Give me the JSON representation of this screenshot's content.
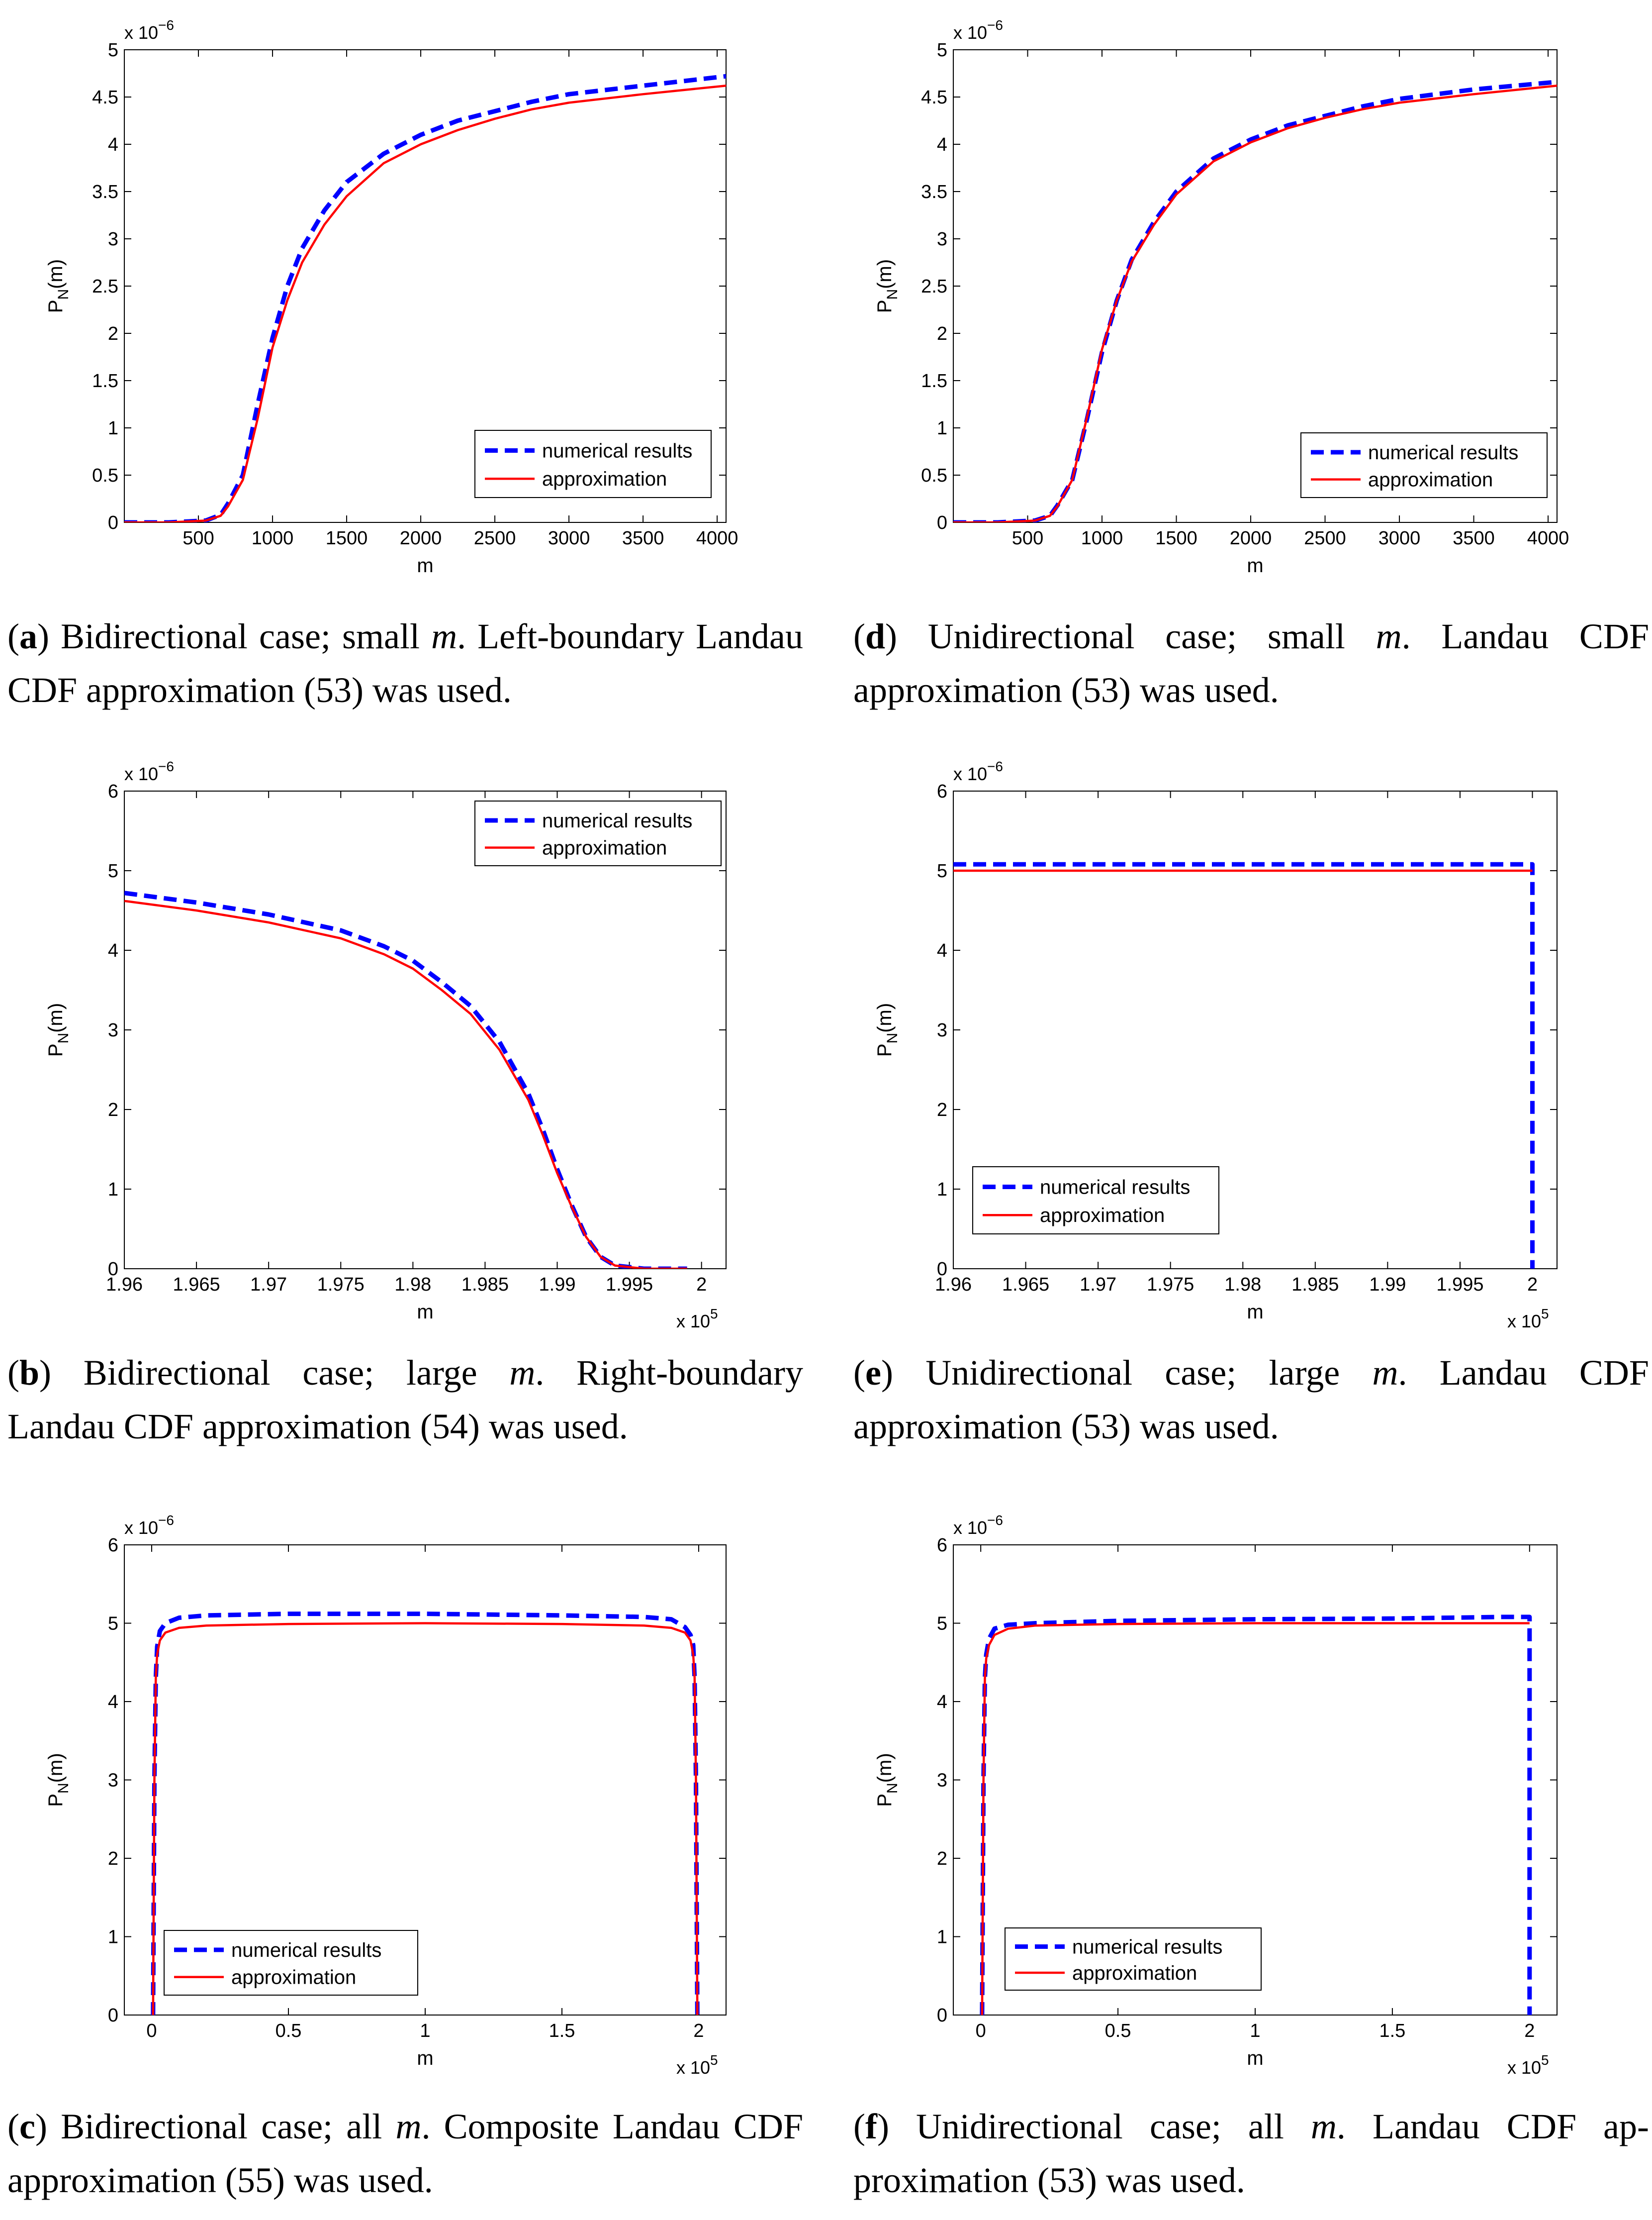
{
  "colors": {
    "numerical": "#0000ff",
    "approximation": "#ff0000",
    "axis": "#000000"
  },
  "chart_data": [
    {
      "id": "a",
      "type": "line",
      "xlim": [
        0,
        4060
      ],
      "ylim": [
        0,
        5
      ],
      "y_exponent": "x 10",
      "xticks": [
        500,
        1000,
        1500,
        2000,
        2500,
        3000,
        3500,
        4000
      ],
      "xtick_labels": [
        "500",
        "1000",
        "1500",
        "2000",
        "2500",
        "3000",
        "3500",
        "4000"
      ],
      "yticks": [
        0,
        0.5,
        1,
        1.5,
        2,
        2.5,
        3,
        3.5,
        4,
        4.5,
        5
      ],
      "ytick_labels": [
        "0",
        "0.5",
        "1",
        "1.5",
        "2",
        "2.5",
        "3",
        "3.5",
        "4",
        "4.5",
        "5"
      ],
      "xlabel": "m",
      "ylabel": "P_N(m)",
      "exp_base": "x 10",
      "exp_power": "−6",
      "legend": {
        "placement": "bottom-right",
        "entries": [
          "numerical results",
          "approximation"
        ]
      },
      "series": [
        {
          "name": "numerical results",
          "x": [
            0,
            300,
            550,
            650,
            700,
            800,
            900,
            1000,
            1100,
            1200,
            1350,
            1500,
            1750,
            2000,
            2250,
            2500,
            2750,
            3000,
            3500,
            4060
          ],
          "y": [
            0,
            0,
            0.02,
            0.08,
            0.2,
            0.5,
            1.25,
            1.95,
            2.5,
            2.9,
            3.3,
            3.6,
            3.9,
            4.1,
            4.25,
            4.35,
            4.45,
            4.53,
            4.62,
            4.72
          ]
        },
        {
          "name": "approximation",
          "x": [
            0,
            300,
            550,
            650,
            700,
            800,
            900,
            1000,
            1100,
            1200,
            1350,
            1500,
            1750,
            2000,
            2250,
            2500,
            2750,
            3000,
            3500,
            4060
          ],
          "y": [
            0,
            0,
            0.02,
            0.07,
            0.17,
            0.45,
            1.1,
            1.85,
            2.35,
            2.75,
            3.15,
            3.45,
            3.8,
            4.0,
            4.15,
            4.27,
            4.37,
            4.44,
            4.53,
            4.62
          ]
        }
      ],
      "caption": {
        "letter": "a",
        "parts": [
          "Bidirectional case; small ",
          "m",
          ". Left-boundary",
          "Landau CDF approximation (53) was used."
        ]
      }
    },
    {
      "id": "d",
      "type": "line",
      "xlim": [
        0,
        4060
      ],
      "ylim": [
        0,
        5
      ],
      "y_exponent": "x 10",
      "xticks": [
        500,
        1000,
        1500,
        2000,
        2500,
        3000,
        3500,
        4000
      ],
      "xtick_labels": [
        "500",
        "1000",
        "1500",
        "2000",
        "2500",
        "3000",
        "3500",
        "4000"
      ],
      "yticks": [
        0,
        0.5,
        1,
        1.5,
        2,
        2.5,
        3,
        3.5,
        4,
        4.5,
        5
      ],
      "ytick_labels": [
        "0",
        "0.5",
        "1",
        "1.5",
        "2",
        "2.5",
        "3",
        "3.5",
        "4",
        "4.5",
        "5"
      ],
      "xlabel": "m",
      "ylabel": "P_N(m)",
      "exp_base": "x 10",
      "exp_power": "−6",
      "legend": {
        "placement": "bottom-right",
        "entries": [
          "numerical results",
          "approximation"
        ]
      },
      "series": [
        {
          "name": "numerical results",
          "x": [
            0,
            300,
            550,
            650,
            700,
            800,
            900,
            1000,
            1100,
            1200,
            1350,
            1500,
            1750,
            2000,
            2250,
            2500,
            2750,
            3000,
            3500,
            4060
          ],
          "y": [
            0,
            0,
            0.02,
            0.07,
            0.18,
            0.45,
            1.1,
            1.8,
            2.35,
            2.78,
            3.18,
            3.5,
            3.85,
            4.05,
            4.2,
            4.3,
            4.4,
            4.48,
            4.58,
            4.66
          ]
        },
        {
          "name": "approximation",
          "x": [
            0,
            300,
            550,
            650,
            700,
            800,
            900,
            1000,
            1100,
            1200,
            1350,
            1500,
            1750,
            2000,
            2250,
            2500,
            2750,
            3000,
            3500,
            4060
          ],
          "y": [
            0,
            0,
            0.02,
            0.07,
            0.17,
            0.45,
            1.12,
            1.83,
            2.35,
            2.76,
            3.15,
            3.47,
            3.82,
            4.02,
            4.17,
            4.28,
            4.37,
            4.44,
            4.53,
            4.62
          ]
        }
      ],
      "caption": {
        "letter": "d",
        "parts": [
          "Unidirectional case; small ",
          "m",
          ". Landau CDF",
          "approximation (53) was used."
        ]
      }
    },
    {
      "id": "b",
      "type": "line",
      "xlim": [
        1.96,
        2.0017
      ],
      "ylim": [
        0,
        6
      ],
      "x_exponent": "x 10^5",
      "xticks": [
        1.96,
        1.965,
        1.97,
        1.975,
        1.98,
        1.985,
        1.99,
        1.995,
        2
      ],
      "xtick_labels": [
        "1.96",
        "1.965",
        "1.97",
        "1.975",
        "1.98",
        "1.985",
        "1.99",
        "1.995",
        "2"
      ],
      "yticks": [
        0,
        1,
        2,
        3,
        4,
        5,
        6
      ],
      "ytick_labels": [
        "0",
        "1",
        "2",
        "3",
        "4",
        "5",
        "6"
      ],
      "xlabel": "m",
      "ylabel": "P_N(m)",
      "exp_base": "x 10",
      "exp_power": "−6",
      "x_exp_base": "x 10",
      "x_exp_power": "5",
      "legend": {
        "placement": "top-right",
        "entries": [
          "numerical results",
          "approximation"
        ]
      },
      "series": [
        {
          "name": "numerical results",
          "x": [
            1.96,
            1.965,
            1.97,
            1.975,
            1.978,
            1.98,
            1.982,
            1.984,
            1.986,
            1.988,
            1.989,
            1.99,
            1.991,
            1.992,
            1.993,
            1.994,
            1.996,
            1.999
          ],
          "y": [
            4.72,
            4.6,
            4.45,
            4.25,
            4.05,
            3.87,
            3.6,
            3.3,
            2.85,
            2.2,
            1.75,
            1.25,
            0.8,
            0.4,
            0.15,
            0.04,
            0,
            0
          ]
        },
        {
          "name": "approximation",
          "x": [
            1.96,
            1.965,
            1.97,
            1.975,
            1.978,
            1.98,
            1.982,
            1.984,
            1.986,
            1.988,
            1.989,
            1.99,
            1.991,
            1.992,
            1.993,
            1.994,
            1.996,
            1.999
          ],
          "y": [
            4.62,
            4.5,
            4.35,
            4.15,
            3.95,
            3.77,
            3.5,
            3.2,
            2.75,
            2.12,
            1.68,
            1.2,
            0.78,
            0.4,
            0.15,
            0.04,
            0,
            0
          ]
        }
      ],
      "caption": {
        "letter": "b",
        "parts": [
          "Bidirectional case; large ",
          "m",
          ". Right-boundary",
          "Landau CDF approximation (54) was used."
        ]
      }
    },
    {
      "id": "e",
      "type": "line",
      "xlim": [
        1.96,
        2.0017
      ],
      "ylim": [
        0,
        6
      ],
      "x_exponent": "x 10^5",
      "xticks": [
        1.96,
        1.965,
        1.97,
        1.975,
        1.98,
        1.985,
        1.99,
        1.995,
        2
      ],
      "xtick_labels": [
        "1.96",
        "1.965",
        "1.97",
        "1.975",
        "1.98",
        "1.985",
        "1.99",
        "1.995",
        "2"
      ],
      "yticks": [
        0,
        1,
        2,
        3,
        4,
        5,
        6
      ],
      "ytick_labels": [
        "0",
        "1",
        "2",
        "3",
        "4",
        "5",
        "6"
      ],
      "xlabel": "m",
      "ylabel": "P_N(m)",
      "exp_base": "x 10",
      "exp_power": "−6",
      "x_exp_base": "x 10",
      "x_exp_power": "5",
      "legend": {
        "placement": "bottom-left",
        "entries": [
          "numerical results",
          "approximation"
        ]
      },
      "series": [
        {
          "name": "numerical results",
          "x": [
            1.96,
            2.0,
            2.0
          ],
          "y": [
            5.08,
            5.08,
            0
          ]
        },
        {
          "name": "approximation",
          "x": [
            1.96,
            2.0
          ],
          "y": [
            5.0,
            5.0
          ]
        }
      ],
      "caption": {
        "letter": "e",
        "parts": [
          "Unidirectional case; large ",
          "m",
          ". Landau CDF",
          "approximation (53) was used."
        ]
      }
    },
    {
      "id": "c",
      "type": "line",
      "xlim": [
        -0.1,
        2.1
      ],
      "ylim": [
        0,
        6
      ],
      "x_exponent": "x 10^5",
      "xticks": [
        0,
        0.5,
        1,
        1.5,
        2
      ],
      "xtick_labels": [
        "0",
        "0.5",
        "1",
        "1.5",
        "2"
      ],
      "yticks": [
        0,
        1,
        2,
        3,
        4,
        5,
        6
      ],
      "ytick_labels": [
        "0",
        "1",
        "2",
        "3",
        "4",
        "5",
        "6"
      ],
      "xlabel": "m",
      "ylabel": "P_N(m)",
      "exp_base": "x 10",
      "exp_power": "−6",
      "x_exp_base": "x 10",
      "x_exp_power": "5",
      "legend": {
        "placement": "bottom-left",
        "entries": [
          "numerical results",
          "approximation"
        ]
      },
      "series": [
        {
          "name": "numerical results",
          "x": [
            0.005,
            0.01,
            0.015,
            0.02,
            0.03,
            0.05,
            0.1,
            0.2,
            0.5,
            1.0,
            1.5,
            1.8,
            1.9,
            1.95,
            1.97,
            1.98,
            1.985,
            1.99,
            1.995
          ],
          "y": [
            0,
            3.0,
            4.3,
            4.7,
            4.9,
            5.0,
            5.07,
            5.1,
            5.12,
            5.12,
            5.1,
            5.08,
            5.05,
            4.95,
            4.85,
            4.72,
            4.3,
            3.0,
            0
          ]
        },
        {
          "name": "approximation",
          "x": [
            0.005,
            0.01,
            0.015,
            0.02,
            0.03,
            0.05,
            0.1,
            0.2,
            0.5,
            1.0,
            1.5,
            1.8,
            1.9,
            1.95,
            1.97,
            1.98,
            1.985,
            1.99,
            1.995
          ],
          "y": [
            0,
            3.0,
            4.3,
            4.6,
            4.78,
            4.88,
            4.94,
            4.97,
            4.99,
            5.0,
            4.99,
            4.97,
            4.94,
            4.88,
            4.78,
            4.6,
            4.3,
            3.0,
            0
          ]
        }
      ],
      "caption": {
        "letter": "c",
        "parts": [
          "Bidirectional case; all ",
          "m",
          ". Composite Landau",
          "CDF approximation (55) was used."
        ]
      }
    },
    {
      "id": "f",
      "type": "line",
      "xlim": [
        -0.1,
        2.1
      ],
      "ylim": [
        0,
        6
      ],
      "x_exponent": "x 10^5",
      "xticks": [
        0,
        0.5,
        1,
        1.5,
        2
      ],
      "xtick_labels": [
        "0",
        "0.5",
        "1",
        "1.5",
        "2"
      ],
      "yticks": [
        0,
        1,
        2,
        3,
        4,
        5,
        6
      ],
      "ytick_labels": [
        "0",
        "1",
        "2",
        "3",
        "4",
        "5",
        "6"
      ],
      "xlabel": "m",
      "ylabel": "P_N(m)",
      "exp_base": "x 10",
      "exp_power": "−6",
      "x_exp_base": "x 10",
      "x_exp_power": "5",
      "legend": {
        "placement": "bottom-left",
        "entries": [
          "numerical results",
          "approximation"
        ]
      },
      "series": [
        {
          "name": "numerical results",
          "x": [
            0.005,
            0.01,
            0.015,
            0.02,
            0.03,
            0.05,
            0.1,
            0.2,
            0.5,
            1.0,
            1.5,
            1.9,
            2.0,
            2.0
          ],
          "y": [
            0,
            3.0,
            4.3,
            4.6,
            4.8,
            4.93,
            4.98,
            5.0,
            5.03,
            5.05,
            5.06,
            5.08,
            5.08,
            0
          ]
        },
        {
          "name": "approximation",
          "x": [
            0.005,
            0.01,
            0.015,
            0.02,
            0.03,
            0.05,
            0.1,
            0.2,
            0.5,
            1.0,
            1.5,
            2.0
          ],
          "y": [
            0,
            3.0,
            4.3,
            4.55,
            4.72,
            4.85,
            4.93,
            4.97,
            4.99,
            5.0,
            5.0,
            5.0
          ]
        }
      ],
      "caption": {
        "letter": "f",
        "parts": [
          "Unidirectional case; all ",
          "m",
          ". Landau CDF ap-",
          "proximation (53) was used."
        ]
      }
    }
  ]
}
